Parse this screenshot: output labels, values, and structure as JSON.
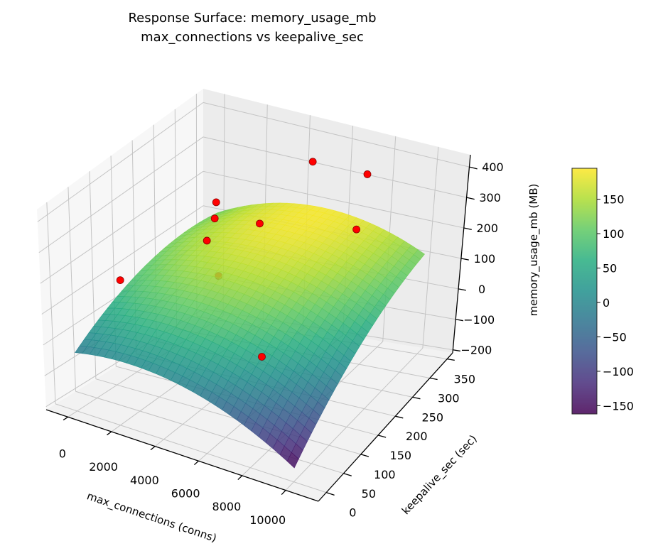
{
  "chart_data": {
    "type": "surface",
    "title": "Response Surface: memory_usage_mb",
    "subtitle": "max_connections vs keepalive_sec",
    "xlabel": "max_connections (conns)",
    "ylabel": "keepalive_sec (sec)",
    "zlabel": "memory_usage_mb (MB)",
    "xlim": [
      -1000,
      11500
    ],
    "ylim": [
      -23,
      366
    ],
    "zlim": [
      -210,
      440
    ],
    "xticks": [
      0,
      2000,
      4000,
      6000,
      8000,
      10000
    ],
    "yticks": [
      0,
      50,
      100,
      150,
      200,
      250,
      300,
      350
    ],
    "zticks": [
      -200,
      -100,
      0,
      100,
      200,
      300,
      400
    ],
    "xtick_labels": [
      "0",
      "2000",
      "4000",
      "6000",
      "8000",
      "10000"
    ],
    "ytick_labels": [
      "0",
      "50",
      "100",
      "150",
      "200",
      "250",
      "300",
      "350"
    ],
    "ztick_labels": [
      "−200",
      "−100",
      "0",
      "100",
      "200",
      "300",
      "400"
    ],
    "grid": true,
    "surface": {
      "colormap": "viridis",
      "x_range": [
        0,
        10000
      ],
      "y_range": [
        0,
        350
      ],
      "description_model": "quadratic fit",
      "peak": {
        "x": 5000,
        "y": 330,
        "z": 190
      },
      "corner_values": {
        "x0_y0": -20,
        "x10000_y0": -160,
        "x0_y350": 110,
        "x10000_y350": 110
      }
    },
    "scatter": {
      "color": "#ff0000",
      "points": [
        {
          "x": 375,
          "y": 94,
          "z": 135
        },
        {
          "x": 1870,
          "y": 250,
          "z": 258
        },
        {
          "x": 3250,
          "y": 172,
          "z": 316
        },
        {
          "x": 3300,
          "y": 150,
          "z": 270
        },
        {
          "x": 4600,
          "y": 211,
          "z": 285
        },
        {
          "x": 4900,
          "y": 327,
          "z": 355
        },
        {
          "x": 8100,
          "y": 288,
          "z": 420
        },
        {
          "x": 7400,
          "y": 308,
          "z": 205
        },
        {
          "x": 3100,
          "y": 191,
          "z": 110
        },
        {
          "x": 7500,
          "y": 55,
          "z": 95
        }
      ]
    },
    "colorbar": {
      "range": [
        -162,
        195
      ],
      "ticks": [
        150,
        100,
        50,
        0,
        -50,
        -100,
        -150
      ],
      "tick_labels": [
        "150",
        "100",
        "50",
        "0",
        "−50",
        "−100",
        "−150"
      ]
    }
  }
}
